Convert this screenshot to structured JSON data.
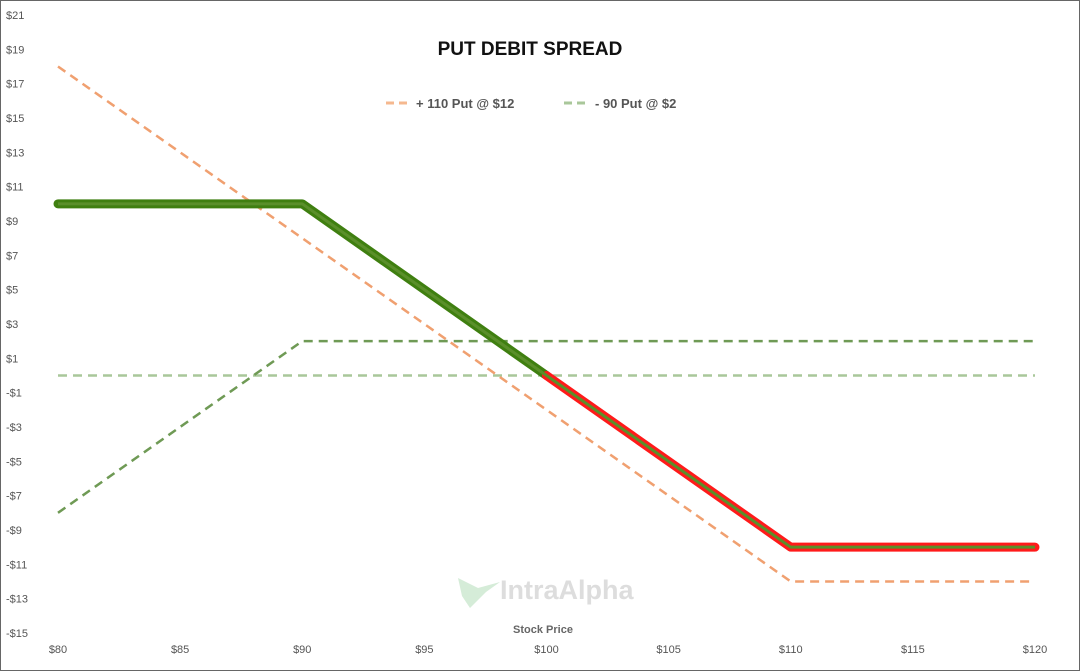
{
  "chart_data": {
    "type": "line",
    "title": "PUT DEBIT SPREAD",
    "xlabel": "Stock Price",
    "ylabel": "",
    "xlim": [
      80,
      120
    ],
    "ylim": [
      -15,
      21
    ],
    "x_ticks": [
      80,
      85,
      90,
      95,
      100,
      105,
      110,
      115,
      120
    ],
    "x_tick_labels": [
      "$80",
      "$85",
      "$90",
      "$95",
      "$100",
      "$105",
      "$110",
      "$115",
      "$120"
    ],
    "y_ticks": [
      21,
      19,
      17,
      15,
      13,
      11,
      9,
      7,
      5,
      3,
      1,
      -1,
      -3,
      -5,
      -7,
      -9,
      -11,
      -13,
      -15
    ],
    "y_tick_labels": [
      "$21",
      "$19",
      "$17",
      "$15",
      "$13",
      "$11",
      "$9",
      "$7",
      "$5",
      "$3",
      "$1",
      "-$1",
      "-$3",
      "-$5",
      "-$7",
      "-$9",
      "-$11",
      "-$13",
      "-$15"
    ],
    "grid": false,
    "legend_position": "top-center",
    "series": [
      {
        "name": "+ 110 Put @ $12",
        "style": "dashed",
        "color": "#f0a070",
        "x": [
          80,
          110,
          120
        ],
        "y": [
          18,
          -12,
          -12
        ]
      },
      {
        "name": "- 90 Put @ $2",
        "style": "dashed",
        "color": "#6f9a55",
        "legend_color": "#a9c79a",
        "x": [
          80,
          90,
          120
        ],
        "y": [
          -8,
          2,
          2
        ]
      },
      {
        "style": "solid",
        "color_profit": "#3f7f10",
        "color_loss": "#ff1a1a",
        "x": [
          80,
          90,
          110,
          120
        ],
        "y": [
          10,
          10,
          -10,
          -10
        ]
      },
      {
        "style": "dashed",
        "color": "#a9c79a",
        "x": [
          80,
          120
        ],
        "y": [
          0,
          0
        ]
      }
    ],
    "watermark": "IntraAlpha"
  }
}
